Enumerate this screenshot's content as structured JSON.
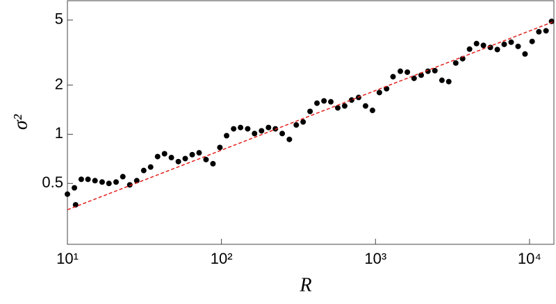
{
  "chart_data": {
    "type": "scatter",
    "xlabel": "R",
    "ylabel": "σ²",
    "xscale": "log",
    "yscale": "log",
    "xlim": [
      10,
      14400
    ],
    "ylim": [
      0.212,
      6.57
    ],
    "xticks": [
      {
        "value": 10,
        "label": "10¹"
      },
      {
        "value": 100,
        "label": "10²"
      },
      {
        "value": 1000,
        "label": "10³"
      },
      {
        "value": 10000,
        "label": "10⁴"
      }
    ],
    "yticks": [
      0.5,
      1,
      2,
      5
    ],
    "series": [
      {
        "name": "data",
        "color": "#000000",
        "x": [
          10,
          11.1,
          11.3,
          12.3,
          13.6,
          15.1,
          16.8,
          18.6,
          20.7,
          22.9,
          25.4,
          28.2,
          31.3,
          34.7,
          38.5,
          42.7,
          47.3,
          52.5,
          58.2,
          64.6,
          71.6,
          79.4,
          88.1,
          97.7,
          108,
          120,
          133,
          148,
          164,
          182,
          202,
          224,
          248,
          276,
          306,
          339,
          376,
          417,
          463,
          513,
          569,
          631,
          700,
          777,
          862,
          956,
          1060,
          1180,
          1300,
          1450,
          1610,
          1780,
          1980,
          2190,
          2430,
          2700,
          2990,
          3320,
          3680,
          4080,
          4530,
          5020,
          5570,
          6180,
          6850,
          7600,
          8430,
          9350,
          10400,
          11500,
          12800,
          13900
        ],
        "values": [
          0.43,
          0.47,
          0.37,
          0.53,
          0.53,
          0.52,
          0.51,
          0.5,
          0.51,
          0.55,
          0.49,
          0.52,
          0.6,
          0.63,
          0.73,
          0.76,
          0.72,
          0.68,
          0.71,
          0.75,
          0.77,
          0.7,
          0.66,
          0.83,
          0.98,
          1.08,
          1.1,
          1.08,
          1.01,
          1.05,
          1.1,
          1.08,
          1.01,
          0.93,
          1.14,
          1.19,
          1.38,
          1.55,
          1.6,
          1.58,
          1.45,
          1.49,
          1.62,
          1.68,
          1.49,
          1.4,
          1.8,
          1.9,
          2.25,
          2.43,
          2.4,
          2.2,
          2.3,
          2.43,
          2.45,
          2.14,
          2.1,
          2.73,
          2.9,
          3.32,
          3.59,
          3.5,
          3.4,
          3.3,
          3.55,
          3.66,
          3.45,
          3.1,
          3.7,
          4.24,
          4.3,
          4.91
        ]
      },
      {
        "name": "fit",
        "color": "#e0201b",
        "style": "dashed",
        "x": [
          10,
          14400
        ],
        "values": [
          0.345,
          4.9
        ]
      }
    ]
  }
}
